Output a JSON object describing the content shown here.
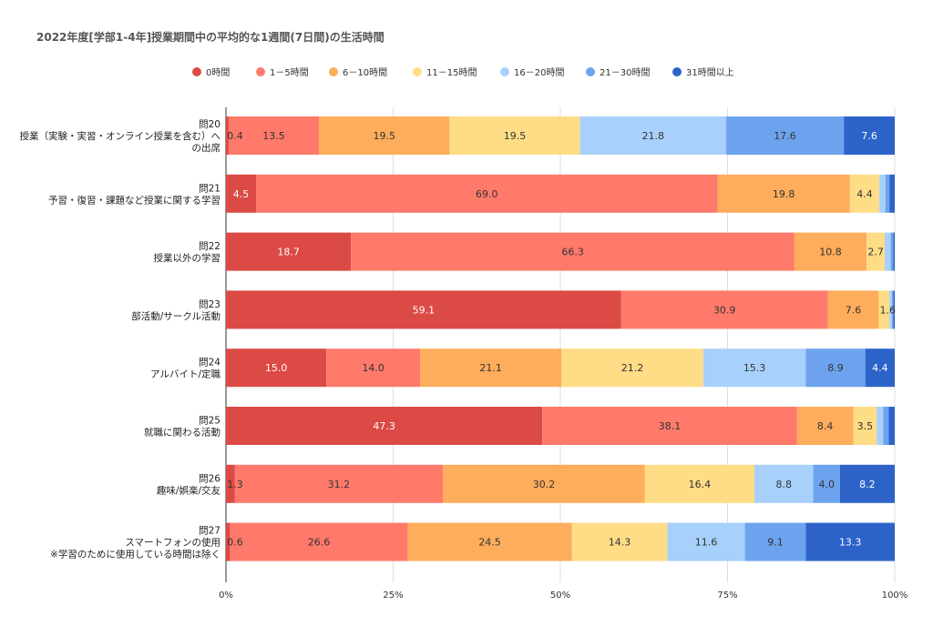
{
  "chart_data": {
    "type": "bar",
    "orientation": "horizontal",
    "stacked": "percent",
    "title": "2022年度[学部1-4年]授業期間中の平均的な1週間(7日間)の生活時間",
    "legend_position": "top",
    "categories": [
      [
        "問20",
        "授業（実験・実習・オンライン授業を含む）へ",
        "の出席"
      ],
      [
        "問21",
        "予習・復習・課題など授業に関する学習"
      ],
      [
        "問22",
        "授業以外の学習"
      ],
      [
        "問23",
        "部活動/サークル活動"
      ],
      [
        "問24",
        "アルバイト/定職"
      ],
      [
        "問25",
        "就職に関わる活動"
      ],
      [
        "問26",
        "趣味/娯楽/交友"
      ],
      [
        "問27",
        "スマートフォンの使用",
        "※学習のために使用している時間は除く"
      ]
    ],
    "x_ticks": [
      "0%",
      "25%",
      "50%",
      "75%",
      "100%"
    ],
    "xlim": [
      0,
      100
    ],
    "grid": true,
    "series": [
      {
        "name": "0時間",
        "color": "#dc4a45",
        "values": [
          0.4,
          4.5,
          18.7,
          59.1,
          15.0,
          47.3,
          1.3,
          0.6
        ]
      },
      {
        "name": "1－5時間",
        "color": "#ff7a6b",
        "values": [
          13.5,
          69.0,
          66.3,
          30.9,
          14.0,
          38.1,
          31.2,
          26.6
        ]
      },
      {
        "name": "6－10時間",
        "color": "#fdad5b",
        "values": [
          19.5,
          19.8,
          10.8,
          7.6,
          21.1,
          8.4,
          30.2,
          24.5
        ]
      },
      {
        "name": "11－15時間",
        "color": "#ffdc86",
        "values": [
          19.5,
          4.4,
          2.7,
          1.6,
          21.2,
          3.5,
          16.4,
          14.3
        ]
      },
      {
        "name": "16－20時間",
        "color": "#a7d1fb",
        "values": [
          21.8,
          0.9,
          0.9,
          0.4,
          15.3,
          1.0,
          8.8,
          11.6
        ]
      },
      {
        "name": "21－30時間",
        "color": "#6da3ee",
        "values": [
          17.6,
          0.6,
          0.4,
          0.2,
          8.9,
          0.8,
          4.0,
          9.1
        ]
      },
      {
        "name": "31時間以上",
        "color": "#2d63c9",
        "values": [
          7.6,
          0.8,
          0.2,
          0.2,
          4.4,
          0.9,
          8.2,
          13.3
        ]
      }
    ],
    "data_labels": [
      [
        "0.4",
        "13.5",
        "19.5",
        "19.5",
        "21.8",
        "17.6",
        "7.6"
      ],
      [
        "4.5",
        "69.0",
        "19.8",
        "4.4",
        "",
        "",
        ""
      ],
      [
        "18.7",
        "66.3",
        "10.8",
        "2.7",
        "",
        "",
        ""
      ],
      [
        "59.1",
        "30.9",
        "7.6",
        "1.6",
        "",
        "",
        ""
      ],
      [
        "15.0",
        "14.0",
        "21.1",
        "21.2",
        "15.3",
        "8.9",
        "4.4"
      ],
      [
        "47.3",
        "38.1",
        "8.4",
        "3.5",
        "",
        "",
        ""
      ],
      [
        "1.3",
        "31.2",
        "30.2",
        "16.4",
        "8.8",
        "4.0",
        "8.2"
      ],
      [
        "0.6",
        "26.6",
        "24.5",
        "14.3",
        "11.6",
        "9.1",
        "13.3"
      ]
    ]
  }
}
